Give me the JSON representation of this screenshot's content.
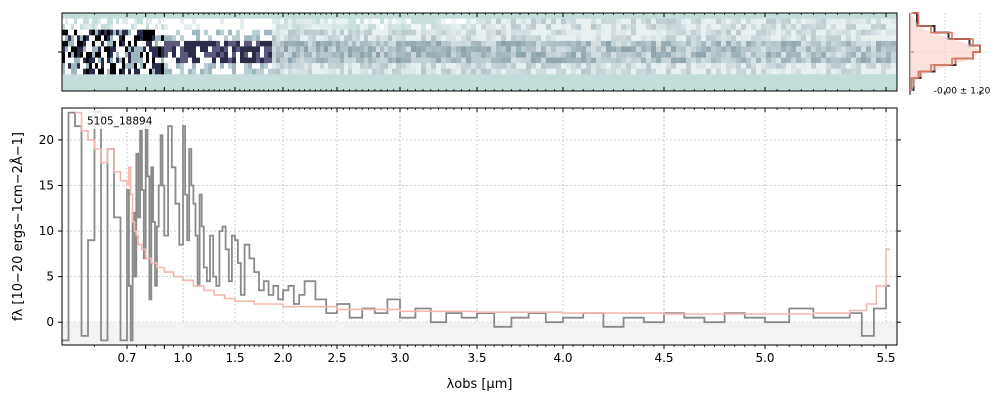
{
  "chart_data": [
    {
      "type": "heatmap",
      "title": "",
      "panel": "2d-spectrum",
      "cmap": [
        "#c4dcda",
        "#ffffff",
        "#9fb8bf",
        "#2b2b4a",
        "#000000"
      ],
      "rows": 14,
      "ylim": [
        -0.5,
        13.5
      ],
      "xscale": "spectrograph",
      "xlim": [
        0.6,
        5.52
      ]
    },
    {
      "type": "line",
      "panel": "profile",
      "annotation": "-0.00 ± 1.20",
      "series": [
        {
          "name": "",
          "role": "data-profile",
          "color": "#2f2f2f",
          "x": [
            -6,
            -4,
            -3,
            -2,
            -1,
            0,
            1,
            2,
            3,
            4,
            6
          ],
          "y": [
            0.05,
            0.15,
            0.35,
            0.65,
            0.9,
            1.0,
            0.85,
            0.55,
            0.35,
            0.1,
            0.05
          ]
        },
        {
          "name": "",
          "role": "model-profile",
          "color": "#e2735f",
          "x": [
            -6,
            -4,
            -3,
            -2,
            -1,
            0,
            1,
            2,
            3,
            4,
            6
          ],
          "y": [
            0.02,
            0.12,
            0.3,
            0.6,
            0.9,
            1.0,
            0.9,
            0.6,
            0.3,
            0.12,
            0.02
          ]
        }
      ]
    },
    {
      "type": "line",
      "panel": "1d-spectrum",
      "annotation": "5105_18894",
      "xlabel": "λobs [μm]",
      "ylabel": "fλ [10−20 ergs−1cm−2Å−1]",
      "xscale": "spectrograph",
      "xlim": [
        0.6,
        5.52
      ],
      "ylim": [
        -2.5,
        23.5
      ],
      "grid": true,
      "xticks": [
        0.7,
        0.8,
        0.9,
        1.0,
        1.5,
        2.0,
        2.5,
        3.0,
        3.5,
        4.0,
        4.5,
        5.0,
        5.5
      ],
      "xtick_labels": [
        "0.7",
        "",
        "",
        "1.0",
        "1.5",
        "2.0",
        "2.5",
        "3.0",
        "3.5",
        "4.0",
        "4.5",
        "5.0",
        "5.5"
      ],
      "yticks": [
        0,
        5,
        10,
        15,
        20
      ],
      "ytick_labels": [
        "0",
        "5",
        "10",
        "15",
        "20"
      ],
      "series": [
        {
          "name": "",
          "role": "data",
          "color": "#8a8a8a",
          "step": true,
          "x": [
            0.6,
            0.61,
            0.62,
            0.63,
            0.64,
            0.65,
            0.66,
            0.67,
            0.68,
            0.69,
            0.7,
            0.71,
            0.72,
            0.73,
            0.74,
            0.75,
            0.76,
            0.77,
            0.78,
            0.79,
            0.8,
            0.81,
            0.82,
            0.83,
            0.84,
            0.85,
            0.86,
            0.87,
            0.88,
            0.89,
            0.9,
            0.92,
            0.94,
            0.96,
            0.98,
            1.0,
            1.02,
            1.04,
            1.06,
            1.08,
            1.1,
            1.12,
            1.14,
            1.16,
            1.18,
            1.2,
            1.23,
            1.26,
            1.29,
            1.32,
            1.35,
            1.38,
            1.41,
            1.44,
            1.47,
            1.5,
            1.53,
            1.56,
            1.6,
            1.65,
            1.7,
            1.75,
            1.8,
            1.85,
            1.9,
            1.95,
            2.0,
            2.05,
            2.1,
            2.15,
            2.2,
            2.3,
            2.4,
            2.5,
            2.6,
            2.7,
            2.8,
            2.9,
            3.0,
            3.1,
            3.2,
            3.3,
            3.4,
            3.5,
            3.6,
            3.7,
            3.8,
            3.9,
            4.0,
            4.1,
            4.2,
            4.3,
            4.4,
            4.5,
            4.6,
            4.7,
            4.8,
            4.9,
            5.0,
            5.1,
            5.2,
            5.3,
            5.35,
            5.4,
            5.45,
            5.5
          ],
          "y": [
            -2.0,
            23.0,
            21.5,
            -1.5,
            9.0,
            23.0,
            -2.0,
            19.0,
            11.5,
            -2.0,
            14.5,
            4.0,
            -2.0,
            12.0,
            5.0,
            18.5,
            11.5,
            21.0,
            14.5,
            7.0,
            22.0,
            16.0,
            2.5,
            17.0,
            11.0,
            4.0,
            10.5,
            15.0,
            20.5,
            15.0,
            9.5,
            21.5,
            17.0,
            13.0,
            8.5,
            21.5,
            14.0,
            9.0,
            19.0,
            15.0,
            13.0,
            9.5,
            4.0,
            14.0,
            10.5,
            6.0,
            4.5,
            9.5,
            5.0,
            4.0,
            10.0,
            10.5,
            8.0,
            4.5,
            9.5,
            9.0,
            6.5,
            3.0,
            8.5,
            7.0,
            5.5,
            3.5,
            4.5,
            3.0,
            4.0,
            2.5,
            3.5,
            4.0,
            2.0,
            3.0,
            4.5,
            2.5,
            1.0,
            2.0,
            0.5,
            1.5,
            1.0,
            2.5,
            0.5,
            1.5,
            0.0,
            1.0,
            0.5,
            1.0,
            -0.5,
            0.5,
            1.0,
            0.0,
            0.5,
            1.0,
            -0.5,
            0.5,
            0.0,
            1.0,
            0.5,
            0.0,
            1.0,
            0.5,
            0.0,
            1.5,
            0.5,
            0.5,
            1.0,
            -1.5,
            1.5,
            4.0
          ]
        },
        {
          "name": "",
          "role": "model",
          "color": "#f4b7b0",
          "step": true,
          "x": [
            0.62,
            0.63,
            0.64,
            0.65,
            0.66,
            0.67,
            0.68,
            0.69,
            0.7,
            0.71,
            0.72,
            0.73,
            0.74,
            0.75,
            0.76,
            0.78,
            0.8,
            0.83,
            0.86,
            0.9,
            0.95,
            1.0,
            1.1,
            1.2,
            1.3,
            1.4,
            1.5,
            1.7,
            2.0,
            2.5,
            3.0,
            3.5,
            4.0,
            4.5,
            5.0,
            5.2,
            5.35,
            5.42,
            5.46,
            5.5
          ],
          "y": [
            23.0,
            21.0,
            20.0,
            19.0,
            17.5,
            19.0,
            16.5,
            15.5,
            15.0,
            17.0,
            14.0,
            11.0,
            10.0,
            9.5,
            8.5,
            8.0,
            7.0,
            6.5,
            6.0,
            5.5,
            5.0,
            4.6,
            4.0,
            3.5,
            3.0,
            2.6,
            2.3,
            2.0,
            1.7,
            1.4,
            1.2,
            1.1,
            1.0,
            0.9,
            0.9,
            1.0,
            1.3,
            2.0,
            4.0,
            8.0
          ]
        }
      ]
    }
  ]
}
